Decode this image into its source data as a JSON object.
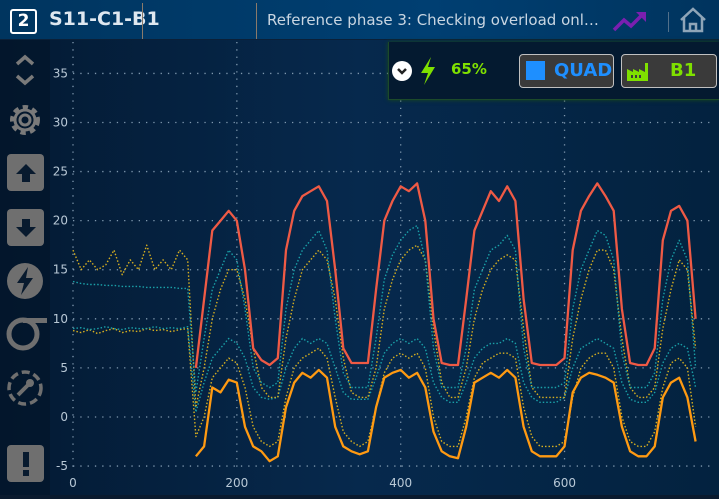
{
  "header": {
    "logo": "2",
    "station": "S11-C1-B1",
    "phase": "Reference phase 3: Checking overload onl…",
    "trend_icon": "trending-up-icon",
    "home_icon": "home-icon"
  },
  "sidebar": {
    "items": [
      "chevron-up-down-icon",
      "gear-icon",
      "arrow-up-icon",
      "arrow-down-icon",
      "lightning-icon",
      "sigma-icon",
      "wrench-icon",
      "alert-icon"
    ]
  },
  "panel": {
    "battery": "65%",
    "mode": "QUAD",
    "mode_color": "#1e8fff",
    "machine": "B1",
    "accent": "#7fe000"
  },
  "chart_data": {
    "type": "line",
    "xlim": [
      0,
      780
    ],
    "ylim": [
      -5.4,
      38.2
    ],
    "xticks": [
      0,
      200,
      400,
      600
    ],
    "yticks": [
      -5,
      0,
      5,
      10,
      15,
      20,
      25,
      30,
      35
    ],
    "grid": true,
    "series": [
      {
        "style": "solid",
        "color": "#ef5a45",
        "x_start": 150,
        "x_step": 10,
        "values": [
          5,
          12,
          19,
          20,
          21,
          20,
          15,
          7,
          5.8,
          5.3,
          6,
          17,
          21,
          22.5,
          23,
          23.5,
          22,
          15,
          7,
          5.5,
          5.5,
          5.5,
          13,
          20,
          22,
          23.5,
          23,
          23.8,
          20,
          10,
          5.5,
          5.3,
          5.3,
          12,
          19,
          21,
          23,
          22,
          23.5,
          22,
          12,
          5.5,
          5.3,
          5.3,
          5.3,
          6,
          17,
          21,
          22.5,
          23.8,
          22.5,
          21,
          11,
          5.5,
          5.3,
          5.3,
          7,
          18,
          21,
          21.5,
          20,
          10
        ]
      },
      {
        "style": "solid",
        "color": "#ff9a12",
        "x_start": 150,
        "x_step": 10,
        "values": [
          -4,
          -3,
          3,
          2.5,
          3.8,
          3.5,
          -1,
          -3,
          -3.5,
          -4.5,
          -4,
          1,
          3.5,
          4.5,
          4,
          4.8,
          4,
          -1,
          -3,
          -3.5,
          -3.8,
          -3.5,
          1,
          4,
          4.5,
          4.8,
          4,
          4.5,
          3,
          -1.5,
          -3.5,
          -4,
          -4.2,
          -1,
          3.5,
          4,
          4.5,
          4,
          4.8,
          4,
          -1,
          -3.5,
          -4,
          -4,
          -4,
          -3,
          2.5,
          4,
          4.5,
          4.3,
          4,
          3.5,
          -1,
          -3.5,
          -4,
          -4,
          -3,
          2,
          3.5,
          4,
          2,
          -2.5
        ]
      },
      {
        "style": "dotted",
        "color": "#1aa0a8",
        "x_start": 0,
        "x_step": 10,
        "values": [
          13.8,
          13.6,
          13.5,
          13.5,
          13.4,
          13.4,
          13.3,
          13.3,
          13.3,
          13.2,
          13.2,
          13.2,
          13.2,
          13.1,
          13.1,
          2.5,
          8,
          13,
          15,
          17,
          16,
          11,
          5,
          3.5,
          3,
          3.5,
          11,
          15,
          17,
          18,
          19,
          17,
          10,
          4.5,
          3,
          3,
          3,
          8,
          14,
          16.5,
          18,
          19,
          19.5,
          16,
          7,
          3,
          3,
          3,
          7,
          13,
          15,
          17,
          17.5,
          18.5,
          17,
          7,
          3,
          3,
          3,
          3,
          3.5,
          11,
          15,
          17,
          19,
          18.5,
          16,
          6.5,
          3,
          3,
          3,
          4.5,
          12,
          16,
          18,
          16,
          5
        ]
      },
      {
        "style": "dotted",
        "color": "#d8b020",
        "x_start": 0,
        "x_step": 10,
        "values": [
          17,
          15,
          16,
          15,
          15.5,
          17,
          14.5,
          16,
          15,
          17.5,
          15,
          16,
          15,
          17,
          16,
          1,
          5,
          10,
          13,
          15,
          15,
          12,
          7,
          3,
          2,
          2,
          8,
          12,
          15,
          16,
          17,
          16,
          12,
          6,
          2.5,
          2,
          2,
          5,
          11,
          14,
          16,
          17,
          17.5,
          16,
          9,
          3.5,
          2,
          2,
          5,
          10,
          13,
          15,
          16,
          16.5,
          16,
          9,
          3,
          2,
          2,
          2,
          2,
          8,
          12,
          15,
          17,
          17,
          15,
          8,
          3,
          2,
          2,
          3,
          9,
          13,
          16,
          15,
          7
        ]
      },
      {
        "style": "dotted",
        "color": "#1aa0a8",
        "x_start": 0,
        "x_step": 10,
        "values": [
          9,
          9.1,
          8.9,
          9,
          9.2,
          9,
          8.9,
          9.1,
          9,
          9,
          9.2,
          9,
          9.1,
          9,
          9.2,
          0.5,
          3.5,
          6,
          7,
          8,
          7.5,
          6,
          3,
          2,
          1.8,
          2,
          5,
          7,
          8,
          7.5,
          8,
          7.5,
          5,
          2.5,
          1.8,
          1.8,
          1.8,
          4,
          6.5,
          7.5,
          8,
          7.5,
          8,
          7,
          3.5,
          2,
          1.5,
          1.5,
          3.5,
          6,
          7,
          7.5,
          7.5,
          8,
          7.5,
          3.5,
          2,
          1.5,
          1.5,
          1.5,
          2,
          5,
          7,
          7.5,
          8,
          7.5,
          7,
          3.5,
          1.8,
          1.5,
          1.5,
          2.5,
          5.5,
          7,
          7.5,
          7,
          3
        ]
      },
      {
        "style": "dotted",
        "color": "#d8b020",
        "x_start": 0,
        "x_step": 10,
        "values": [
          8.8,
          8.6,
          8.9,
          8.5,
          8.8,
          9,
          8.6,
          8.8,
          8.7,
          9,
          8.8,
          8.9,
          8.7,
          8.9,
          9,
          -2,
          0,
          4,
          5,
          6,
          5.5,
          3,
          -1,
          -2.5,
          -3,
          -2.5,
          2,
          5,
          6,
          6.5,
          7,
          6,
          2,
          -1.5,
          -2.5,
          -3,
          -2.5,
          1,
          4.5,
          6,
          6.5,
          6,
          6.5,
          5,
          0,
          -2.5,
          -3,
          -3,
          0,
          4,
          5.5,
          6,
          6.5,
          6.5,
          6,
          1,
          -2,
          -3,
          -3,
          -3,
          -2.5,
          2,
          5,
          6,
          6.5,
          6.5,
          5,
          0,
          -2.5,
          -3,
          -3,
          -1.5,
          3,
          5.5,
          6,
          5,
          -1
        ]
      }
    ]
  }
}
